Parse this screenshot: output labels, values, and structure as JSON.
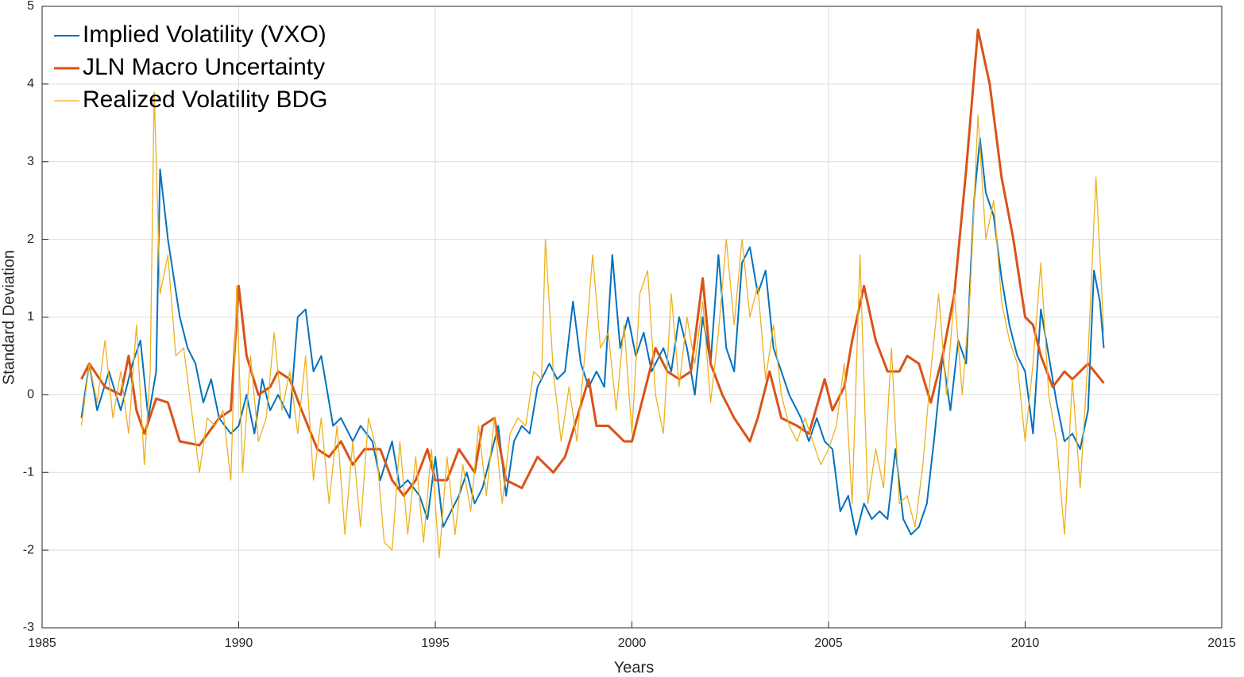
{
  "chart_data": {
    "type": "line",
    "xlabel": "Years",
    "ylabel": "Standard Deviation",
    "xlim": [
      1985,
      2015
    ],
    "xticks": [
      1985,
      1990,
      1995,
      2000,
      2005,
      2010,
      2015
    ],
    "ylim": [
      -3,
      5
    ],
    "yticks": [
      -3,
      -2,
      -1,
      0,
      1,
      2,
      3,
      4,
      5
    ],
    "grid": true,
    "legend": "upper-left",
    "series": [
      {
        "name": "Implied Volatility (VXO)",
        "color": "#0072bd",
        "width": 2,
        "x": [
          1986.0,
          1986.2,
          1986.4,
          1986.7,
          1987.0,
          1987.3,
          1987.5,
          1987.7,
          1987.9,
          1988.0,
          1988.2,
          1988.5,
          1988.7,
          1988.9,
          1989.1,
          1989.3,
          1989.5,
          1989.8,
          1990.0,
          1990.2,
          1990.4,
          1990.6,
          1990.8,
          1991.0,
          1991.3,
          1991.5,
          1991.7,
          1991.9,
          1992.1,
          1992.4,
          1992.6,
          1992.9,
          1993.1,
          1993.4,
          1993.6,
          1993.9,
          1994.1,
          1994.3,
          1994.6,
          1994.8,
          1995.0,
          1995.2,
          1995.4,
          1995.6,
          1995.8,
          1996.0,
          1996.2,
          1996.4,
          1996.6,
          1996.8,
          1997.0,
          1997.2,
          1997.4,
          1997.6,
          1997.9,
          1998.1,
          1998.3,
          1998.5,
          1998.7,
          1998.9,
          1999.1,
          1999.3,
          1999.5,
          1999.7,
          1999.9,
          2000.1,
          2000.3,
          2000.5,
          2000.8,
          2001.0,
          2001.2,
          2001.4,
          2001.6,
          2001.8,
          2002.0,
          2002.2,
          2002.4,
          2002.6,
          2002.8,
          2003.0,
          2003.2,
          2003.4,
          2003.6,
          2003.8,
          2004.0,
          2004.3,
          2004.5,
          2004.7,
          2004.9,
          2005.1,
          2005.3,
          2005.5,
          2005.7,
          2005.9,
          2006.1,
          2006.3,
          2006.5,
          2006.7,
          2006.9,
          2007.1,
          2007.3,
          2007.5,
          2007.7,
          2007.9,
          2008.1,
          2008.3,
          2008.5,
          2008.7,
          2008.85,
          2009.0,
          2009.2,
          2009.4,
          2009.6,
          2009.8,
          2010.0,
          2010.2,
          2010.4,
          2010.6,
          2010.8,
          2011.0,
          2011.2,
          2011.4,
          2011.6,
          2011.75,
          2011.9,
          2012.0
        ],
        "values": [
          -0.3,
          0.4,
          -0.2,
          0.3,
          -0.2,
          0.4,
          0.7,
          -0.3,
          0.3,
          2.9,
          2.0,
          1.0,
          0.6,
          0.4,
          -0.1,
          0.2,
          -0.3,
          -0.5,
          -0.4,
          0.0,
          -0.5,
          0.2,
          -0.2,
          0.0,
          -0.3,
          1.0,
          1.1,
          0.3,
          0.5,
          -0.4,
          -0.3,
          -0.6,
          -0.4,
          -0.6,
          -1.1,
          -0.6,
          -1.2,
          -1.1,
          -1.3,
          -1.6,
          -0.8,
          -1.7,
          -1.5,
          -1.3,
          -1.0,
          -1.4,
          -1.2,
          -0.8,
          -0.4,
          -1.3,
          -0.6,
          -0.4,
          -0.5,
          0.1,
          0.4,
          0.2,
          0.3,
          1.2,
          0.4,
          0.1,
          0.3,
          0.1,
          1.8,
          0.6,
          1.0,
          0.5,
          0.8,
          0.3,
          0.6,
          0.3,
          1.0,
          0.6,
          0.0,
          1.0,
          0.4,
          1.8,
          0.6,
          0.3,
          1.7,
          1.9,
          1.3,
          1.6,
          0.6,
          0.3,
          0.0,
          -0.3,
          -0.6,
          -0.3,
          -0.6,
          -0.7,
          -1.5,
          -1.3,
          -1.8,
          -1.4,
          -1.6,
          -1.5,
          -1.6,
          -0.7,
          -1.6,
          -1.8,
          -1.7,
          -1.4,
          -0.5,
          0.5,
          -0.2,
          0.7,
          0.4,
          2.5,
          3.3,
          2.6,
          2.3,
          1.5,
          0.9,
          0.5,
          0.3,
          -0.5,
          1.1,
          0.5,
          -0.1,
          -0.6,
          -0.5,
          -0.7,
          -0.2,
          1.6,
          1.2,
          0.6
        ]
      },
      {
        "name": "JLN Macro Uncertainty",
        "color": "#d95319",
        "width": 3,
        "x": [
          1986.0,
          1986.2,
          1986.6,
          1987.0,
          1987.2,
          1987.4,
          1987.6,
          1987.9,
          1988.2,
          1988.5,
          1989.0,
          1989.5,
          1989.8,
          1990.0,
          1990.2,
          1990.5,
          1990.8,
          1991.0,
          1991.3,
          1991.6,
          1992.0,
          1992.3,
          1992.6,
          1992.9,
          1993.2,
          1993.6,
          1993.9,
          1994.2,
          1994.5,
          1994.8,
          1995.0,
          1995.3,
          1995.6,
          1996.0,
          1996.2,
          1996.5,
          1996.8,
          1997.2,
          1997.6,
          1998.0,
          1998.3,
          1998.6,
          1998.9,
          1999.1,
          1999.4,
          1999.8,
          2000.0,
          2000.3,
          2000.6,
          2000.9,
          2001.2,
          2001.5,
          2001.8,
          2002.0,
          2002.3,
          2002.6,
          2003.0,
          2003.2,
          2003.5,
          2003.8,
          2004.2,
          2004.5,
          2004.9,
          2005.1,
          2005.4,
          2005.6,
          2005.9,
          2006.2,
          2006.5,
          2006.8,
          2007.0,
          2007.3,
          2007.6,
          2007.9,
          2008.2,
          2008.5,
          2008.8,
          2009.1,
          2009.4,
          2009.7,
          2010.0,
          2010.2,
          2010.4,
          2010.7,
          2011.0,
          2011.2,
          2011.6,
          2012.0
        ],
        "values": [
          0.2,
          0.4,
          0.1,
          0.0,
          0.5,
          -0.2,
          -0.5,
          -0.05,
          -0.1,
          -0.6,
          -0.65,
          -0.3,
          -0.2,
          1.4,
          0.5,
          0.0,
          0.1,
          0.3,
          0.2,
          -0.2,
          -0.7,
          -0.8,
          -0.6,
          -0.9,
          -0.7,
          -0.7,
          -1.1,
          -1.3,
          -1.1,
          -0.7,
          -1.1,
          -1.1,
          -0.7,
          -1.0,
          -0.4,
          -0.3,
          -1.1,
          -1.2,
          -0.8,
          -1.0,
          -0.8,
          -0.3,
          0.2,
          -0.4,
          -0.4,
          -0.6,
          -0.6,
          0.0,
          0.6,
          0.3,
          0.2,
          0.3,
          1.5,
          0.4,
          0.0,
          -0.3,
          -0.6,
          -0.3,
          0.3,
          -0.3,
          -0.4,
          -0.5,
          0.2,
          -0.2,
          0.1,
          0.7,
          1.4,
          0.7,
          0.3,
          0.3,
          0.5,
          0.4,
          -0.1,
          0.5,
          1.3,
          2.9,
          4.7,
          4.0,
          2.8,
          2.0,
          1.0,
          0.9,
          0.5,
          0.1,
          0.3,
          0.2,
          0.4,
          0.15
        ]
      },
      {
        "name": "Realized Volatility BDG",
        "color": "#edb120",
        "width": 1.3,
        "x": [
          1986.0,
          1986.2,
          1986.4,
          1986.6,
          1986.8,
          1987.0,
          1987.2,
          1987.4,
          1987.6,
          1987.75,
          1987.85,
          1988.0,
          1988.2,
          1988.4,
          1988.6,
          1988.8,
          1989.0,
          1989.2,
          1989.4,
          1989.6,
          1989.8,
          1989.95,
          1990.1,
          1990.3,
          1990.5,
          1990.7,
          1990.9,
          1991.1,
          1991.3,
          1991.5,
          1991.7,
          1991.9,
          1992.1,
          1992.3,
          1992.5,
          1992.7,
          1992.9,
          1993.1,
          1993.3,
          1993.5,
          1993.7,
          1993.9,
          1994.1,
          1994.3,
          1994.5,
          1994.7,
          1994.9,
          1995.1,
          1995.3,
          1995.5,
          1995.7,
          1995.9,
          1996.1,
          1996.3,
          1996.5,
          1996.7,
          1996.9,
          1997.1,
          1997.3,
          1997.5,
          1997.7,
          1997.8,
          1998.0,
          1998.2,
          1998.4,
          1998.6,
          1998.8,
          1999.0,
          1999.2,
          1999.4,
          1999.6,
          1999.8,
          2000.0,
          2000.2,
          2000.4,
          2000.6,
          2000.8,
          2001.0,
          2001.2,
          2001.4,
          2001.6,
          2001.8,
          2002.0,
          2002.2,
          2002.4,
          2002.6,
          2002.8,
          2003.0,
          2003.2,
          2003.4,
          2003.6,
          2003.8,
          2004.0,
          2004.2,
          2004.4,
          2004.6,
          2004.8,
          2005.0,
          2005.2,
          2005.4,
          2005.6,
          2005.8,
          2006.0,
          2006.2,
          2006.4,
          2006.6,
          2006.8,
          2007.0,
          2007.2,
          2007.4,
          2007.6,
          2007.8,
          2008.0,
          2008.2,
          2008.4,
          2008.6,
          2008.8,
          2009.0,
          2009.2,
          2009.4,
          2009.6,
          2009.8,
          2010.0,
          2010.2,
          2010.4,
          2010.6,
          2010.8,
          2011.0,
          2011.2,
          2011.4,
          2011.6,
          2011.8,
          2012.0
        ],
        "values": [
          -0.4,
          0.4,
          -0.1,
          0.7,
          -0.3,
          0.3,
          -0.5,
          0.9,
          -0.9,
          0.3,
          3.9,
          1.3,
          1.8,
          0.5,
          0.6,
          -0.2,
          -1.0,
          -0.3,
          -0.4,
          -0.2,
          -1.1,
          1.4,
          -1.0,
          0.5,
          -0.6,
          -0.3,
          0.8,
          -0.2,
          0.3,
          -0.5,
          0.5,
          -1.1,
          -0.3,
          -1.4,
          -0.4,
          -1.8,
          -0.6,
          -1.7,
          -0.3,
          -0.7,
          -1.9,
          -2.0,
          -0.6,
          -1.8,
          -0.8,
          -1.9,
          -0.7,
          -2.1,
          -0.8,
          -1.8,
          -0.9,
          -1.5,
          -0.4,
          -1.3,
          -0.3,
          -1.4,
          -0.5,
          -0.3,
          -0.4,
          0.3,
          0.2,
          2.0,
          0.3,
          -0.6,
          0.1,
          -0.6,
          0.5,
          1.8,
          0.6,
          0.8,
          -0.2,
          0.9,
          -0.5,
          1.3,
          1.6,
          0.0,
          -0.5,
          1.3,
          0.1,
          1.0,
          0.4,
          1.2,
          -0.1,
          0.8,
          2.0,
          0.9,
          2.0,
          1.0,
          1.4,
          0.2,
          0.9,
          0.0,
          -0.4,
          -0.6,
          -0.3,
          -0.6,
          -0.9,
          -0.7,
          -0.4,
          0.4,
          -1.4,
          1.8,
          -1.4,
          -0.7,
          -1.2,
          0.6,
          -1.4,
          -1.3,
          -1.7,
          -0.9,
          0.3,
          1.3,
          0.0,
          1.3,
          0.0,
          1.3,
          3.6,
          2.0,
          2.5,
          1.2,
          0.7,
          0.4,
          -0.6,
          0.4,
          1.7,
          0.0,
          -0.6,
          -1.8,
          0.2,
          -1.2,
          0.5,
          2.8,
          0.8
        ]
      }
    ]
  }
}
